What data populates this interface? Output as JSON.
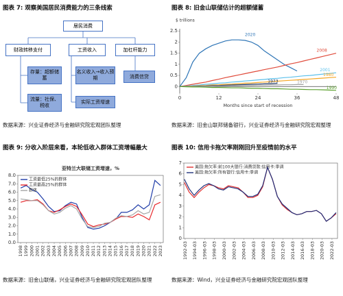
{
  "figure7": {
    "title": "图表 7: 观察美国居民消费能力的三条线索",
    "nodes": [
      "居民消费",
      "财政转移支付",
      "工资收入",
      "加杠杆能力",
      "存量：超额储蓄",
      "流量：社保、税收",
      "名义收入→收入预期",
      "实际工资增速",
      "消费信贷"
    ],
    "source": "数据来源：兴业证券经济与金融研究院宏观团队整理"
  },
  "chart_data": [
    {
      "type": "line",
      "title": "图表 8: 旧金山联储估计的超额储蓄",
      "ylabel": "$ trillions",
      "xlabel": "Months since start of recession",
      "source": "数据来源：旧金山联邦储备银行，兴业证券经济与金融研究院宏观整理",
      "x": [
        0,
        2,
        4,
        6,
        8,
        10,
        12,
        14,
        16,
        18,
        20,
        22,
        24,
        26,
        28,
        30,
        32,
        34,
        36,
        38,
        40,
        42,
        44,
        46,
        48
      ],
      "xlim": [
        0,
        48
      ],
      "xticks": [
        0,
        12,
        24,
        36,
        48
      ],
      "ylim": [
        -0.3,
        2.6
      ],
      "yticks": [
        0,
        0.5,
        1,
        1.5,
        2,
        2.5
      ],
      "grid": false,
      "series": [
        {
          "name": "2020",
          "color": "#2e75b6",
          "values": [
            0,
            0.4,
            1.1,
            1.5,
            1.7,
            1.85,
            1.95,
            2.05,
            2.1,
            2.1,
            2.08,
            2.0,
            1.85,
            1.6,
            1.4,
            1.2,
            1.0,
            0.85,
            0.7,
            null,
            null,
            null,
            null,
            null,
            null
          ]
        },
        {
          "name": "2008",
          "color": "#e04a3a",
          "values": [
            0,
            0.05,
            0.1,
            0.15,
            0.2,
            0.27,
            0.33,
            0.4,
            0.46,
            0.52,
            0.58,
            0.64,
            0.7,
            0.76,
            0.82,
            0.88,
            0.95,
            1.02,
            1.08,
            1.15,
            1.22,
            1.29,
            1.36,
            1.43,
            1.5
          ]
        },
        {
          "name": "2001",
          "color": "#5bc0eb",
          "values": [
            0,
            0.02,
            0.05,
            0.07,
            0.1,
            0.12,
            0.15,
            0.17,
            0.2,
            0.22,
            0.25,
            0.27,
            0.3,
            0.32,
            0.35,
            0.37,
            0.4,
            0.42,
            0.45,
            0.48,
            0.5,
            0.53,
            0.56,
            0.59,
            0.62
          ]
        },
        {
          "name": "1980",
          "color": "#f5a623",
          "values": [
            0,
            0.01,
            0.02,
            0.04,
            0.05,
            0.07,
            0.08,
            0.1,
            0.11,
            0.13,
            0.15,
            0.16,
            0.18,
            0.2,
            0.22,
            0.24,
            0.26,
            0.28,
            0.3,
            0.32,
            0.34,
            0.36,
            0.38,
            0.4,
            0.42
          ]
        },
        {
          "name": "1973",
          "color": "#1f3864",
          "values": [
            0,
            0,
            0.01,
            0.02,
            0.03,
            0.04,
            0.05,
            0.06,
            0.07,
            0.08,
            0.09,
            0.1,
            0.11,
            0.12,
            0.13,
            0.14,
            null,
            null,
            null,
            null,
            null,
            null,
            null,
            null,
            null
          ]
        },
        {
          "name": "1970",
          "color": "#a0a0a0",
          "values": [
            0,
            0,
            0.01,
            0.01,
            0.02,
            0.02,
            0.03,
            0.03,
            0.04,
            0.04,
            0.05,
            0.05,
            0.06,
            0.06,
            0.07,
            0.07,
            0.08,
            0.08,
            0.09,
            0.09,
            null,
            null,
            null,
            null,
            null
          ]
        },
        {
          "name": "1990",
          "color": "#5aa02c",
          "values": [
            0,
            -0.01,
            -0.02,
            -0.02,
            -0.03,
            -0.04,
            -0.04,
            -0.05,
            -0.06,
            -0.06,
            -0.07,
            -0.08,
            -0.08,
            -0.09,
            -0.1,
            -0.1,
            -0.11,
            -0.12,
            -0.12,
            -0.13,
            -0.14,
            -0.14,
            -0.15,
            -0.16,
            -0.17
          ]
        }
      ]
    },
    {
      "type": "line",
      "title": "图表 9: 分收入阶层来看，本轮低收入群体工资增幅最大",
      "subtitle": "亚特兰大联储工资增速，%",
      "source": "数据来源：旧金山联储，兴业证券经济与金融研究院宏观团队整理",
      "x": [
        1998,
        1999,
        2000,
        2001,
        2002,
        2003,
        2004,
        2005,
        2006,
        2007,
        2008,
        2009,
        2010,
        2011,
        2012,
        2013,
        2014,
        2015,
        2016,
        2017,
        2018,
        2019,
        2020,
        2021,
        2022,
        2023
      ],
      "xlim": [
        1997.5,
        2023.5
      ],
      "xticks": [
        1998,
        1999,
        2000,
        2001,
        2002,
        2003,
        2004,
        2005,
        2006,
        2007,
        2008,
        2009,
        2010,
        2011,
        2012,
        2013,
        2014,
        2015,
        2016,
        2017,
        2018,
        2019,
        2020,
        2021,
        2022,
        2023
      ],
      "ylim": [
        0,
        8
      ],
      "yticks": [
        {
          "value": 0,
          "label": "0.0"
        },
        {
          "value": 1,
          "label": "1.0"
        },
        {
          "value": 2,
          "label": "2.0"
        },
        {
          "value": 3,
          "label": "3.0"
        },
        {
          "value": 4,
          "label": "4.0"
        },
        {
          "value": 5,
          "label": "5.0"
        },
        {
          "value": 6,
          "label": "6.0"
        },
        {
          "value": 7,
          "label": "7.0"
        },
        {
          "value": 8,
          "label": "8.0"
        }
      ],
      "grid": false,
      "series": [
        {
          "name": "工资最低25%的群体",
          "color": "#1f3ca8",
          "values": [
            6.5,
            6.8,
            6.3,
            6.0,
            5.2,
            4.3,
            3.7,
            3.8,
            4.4,
            4.8,
            4.6,
            3.0,
            1.8,
            1.6,
            1.7,
            2.0,
            2.4,
            2.8,
            3.6,
            3.6,
            3.9,
            4.5,
            4.0,
            4.5,
            7.4,
            6.8
          ]
        },
        {
          "name": "工资最高25%的群体",
          "color": "#e8262a",
          "values": [
            4.8,
            5.0,
            5.0,
            5.1,
            4.6,
            3.8,
            3.6,
            3.9,
            4.3,
            4.6,
            4.3,
            3.3,
            2.2,
            1.9,
            2.1,
            2.2,
            2.4,
            2.8,
            3.1,
            3.1,
            3.0,
            3.4,
            3.1,
            2.7,
            4.5,
            4.8
          ]
        },
        {
          "name": "群体",
          "color": "#a6a6a6",
          "values": [
            5.2,
            5.1,
            5.0,
            5.0,
            4.5,
            3.8,
            3.4,
            3.6,
            4.1,
            4.4,
            4.0,
            2.8,
            1.9,
            1.8,
            1.9,
            2.3,
            2.4,
            2.9,
            3.2,
            3.1,
            3.3,
            3.8,
            3.4,
            3.6,
            5.5,
            5.7
          ]
        }
      ]
    },
    {
      "type": "line",
      "title": "图表 10: 信用卡拖欠率刚刚回升至疫情前的水平",
      "source": "数据来源：Wind，兴业证券经济与金融研究院宏观团队整理",
      "x": [
        1992,
        1993,
        1994,
        1995,
        1996,
        1997,
        1998,
        1999,
        2000,
        2001,
        2002,
        2003,
        2004,
        2005,
        2006,
        2007,
        2008,
        2009,
        2010,
        2011,
        2012,
        2013,
        2014,
        2015,
        2016,
        2017,
        2018,
        2019,
        2020,
        2021,
        2022,
        2023
      ],
      "xlim": [
        1991.9,
        2023.3
      ],
      "xticks": [
        {
          "value": 1992.17,
          "label": "1992-03"
        },
        {
          "value": 1994.17,
          "label": "1994-03"
        },
        {
          "value": 1996.17,
          "label": "1996-03"
        },
        {
          "value": 1998.17,
          "label": "1998-03"
        },
        {
          "value": 2000.17,
          "label": "2000-03"
        },
        {
          "value": 2002.17,
          "label": "2002-03"
        },
        {
          "value": 2004.17,
          "label": "2004-03"
        },
        {
          "value": 2006.17,
          "label": "2006-03"
        },
        {
          "value": 2008.17,
          "label": "2008-03"
        },
        {
          "value": 2010.17,
          "label": "2010-03"
        },
        {
          "value": 2012.17,
          "label": "2012-03"
        },
        {
          "value": 2014.17,
          "label": "2014-03"
        },
        {
          "value": 2016.17,
          "label": "2016-03"
        },
        {
          "value": 2018.17,
          "label": "2018-03"
        },
        {
          "value": 2020.17,
          "label": "2020-03"
        },
        {
          "value": 2022.17,
          "label": "2022-03"
        }
      ],
      "ylim": [
        0,
        7
      ],
      "yticks": [
        0,
        1,
        2,
        3,
        4,
        5,
        6,
        7
      ],
      "grid": false,
      "series": [
        {
          "name": "美国:拖欠率:前100大银行:消费贷款:信用卡:季调",
          "color": "#e03030",
          "values": [
            5.2,
            4.3,
            3.8,
            4.3,
            4.7,
            5.0,
            4.9,
            4.7,
            4.6,
            4.9,
            4.8,
            4.7,
            4.3,
            3.8,
            3.8,
            4.0,
            4.8,
            6.6,
            5.5,
            3.9,
            3.1,
            2.7,
            2.4,
            2.2,
            2.3,
            2.5,
            2.5,
            2.6,
            2.3,
            1.6,
            1.9,
            2.3
          ]
        },
        {
          "name": "美国:拖欠率:所有银行:信用卡:季调",
          "color": "#1f2f7a",
          "values": [
            5.5,
            4.6,
            4.0,
            4.5,
            4.9,
            5.1,
            4.9,
            4.6,
            4.5,
            4.8,
            4.7,
            4.6,
            4.3,
            3.9,
            3.9,
            4.1,
            4.9,
            6.6,
            5.5,
            3.9,
            3.2,
            2.8,
            2.4,
            2.2,
            2.3,
            2.5,
            2.5,
            2.6,
            2.3,
            1.6,
            1.9,
            2.4
          ]
        }
      ]
    }
  ]
}
